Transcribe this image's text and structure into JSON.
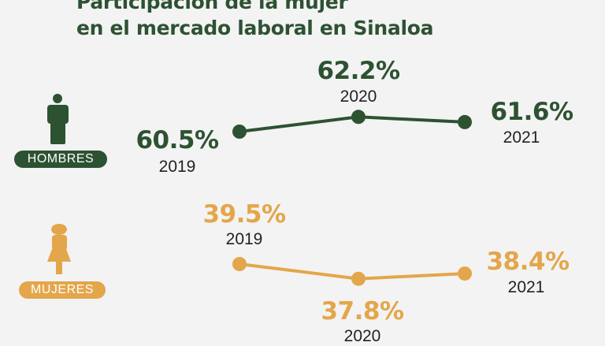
{
  "title_line1": "Participación de la mujer",
  "title_line2": "en el mercado laboral en Sinaloa",
  "colors": {
    "hombres": "#2d5232",
    "mujeres": "#e4a64a",
    "background": "#f3f3f3"
  },
  "chart_data": [
    {
      "type": "line",
      "name": "HOMBRES",
      "icon": "man-icon",
      "x": [
        "2019",
        "2020",
        "2021"
      ],
      "values": [
        60.5,
        62.2,
        61.6
      ],
      "labels": [
        "60.5%",
        "62.2%",
        "61.6%"
      ]
    },
    {
      "type": "line",
      "name": "MUJERES",
      "icon": "woman-icon",
      "x": [
        "2019",
        "2020",
        "2021"
      ],
      "values": [
        39.5,
        37.8,
        38.4
      ],
      "labels": [
        "39.5%",
        "37.8%",
        "38.4%"
      ]
    }
  ]
}
